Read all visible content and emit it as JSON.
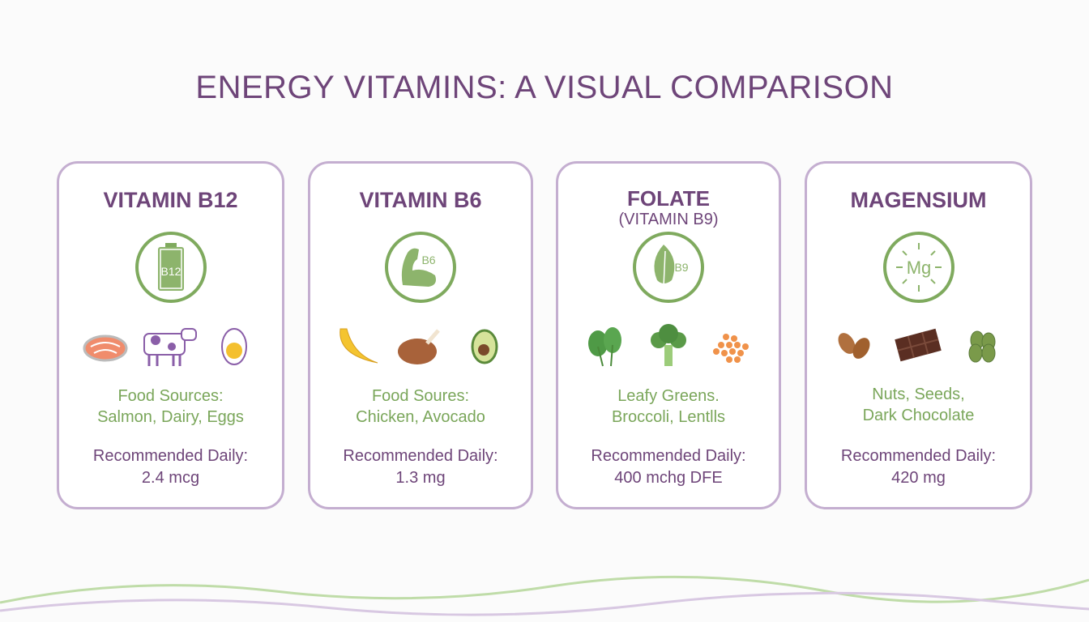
{
  "title": "ENERGY VITAMINS: A VISUAL COMPARISON",
  "colors": {
    "purple": "#6e4579",
    "green": "#7aa65a",
    "border": "#c4aed0"
  },
  "cards": [
    {
      "name": "VITAMIN B12",
      "subtitle": "",
      "badge_icon": "battery-icon",
      "badge_text": "B12",
      "foods": [
        "salmon-icon",
        "cow-icon",
        "egg-icon"
      ],
      "sources_line1": "Food Sources:",
      "sources_line2": "Salmon, Dairy, Eggs",
      "rec_label": "Recommended Daily:",
      "rec_value": "2.4 mcg"
    },
    {
      "name": "VITAMIN B6",
      "subtitle": "",
      "badge_icon": "flexed-arm-icon",
      "badge_text": "B6",
      "foods": [
        "banana-icon",
        "roast-chicken-icon",
        "avocado-icon"
      ],
      "sources_line1": "Food Soures:",
      "sources_line2": "Chicken, Avocado",
      "rec_label": "Recommended Daily:",
      "rec_value": "1.3 mg"
    },
    {
      "name": "FOLATE",
      "subtitle": "(VITAMIN B9)",
      "badge_icon": "leaf-icon",
      "badge_text": "B9",
      "foods": [
        "spinach-icon",
        "broccoli-icon",
        "lentils-icon"
      ],
      "sources_line1": "Leafy Greens.",
      "sources_line2": "Broccoli, Lentlls",
      "rec_label": "Recommended Daily:",
      "rec_value": "400 mchg DFE"
    },
    {
      "name": "MAGENSIUM",
      "subtitle": "",
      "badge_icon": "mg-burst-icon",
      "badge_text": "Mg",
      "foods": [
        "almonds-icon",
        "dark-chocolate-icon",
        "pumpkin-seeds-icon"
      ],
      "sources_line1": "Nuts, Seeds,",
      "sources_line2": "Dark Chocolate",
      "rec_label": "Recommended Daily:",
      "rec_value": "420 mg"
    }
  ]
}
